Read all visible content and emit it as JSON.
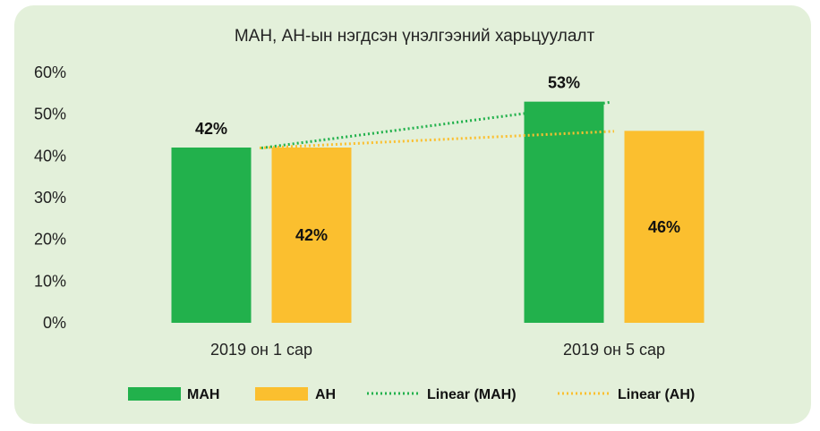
{
  "chart_data": {
    "type": "bar",
    "title": "МАН, АН-ын нэгдсэн үнэлгээний харьцуулалт",
    "categories": [
      "2019 он 1 сар",
      "2019 он 5 сар"
    ],
    "series": [
      {
        "name": "МАН",
        "values": [
          42,
          53
        ],
        "labels": [
          "42%",
          "53%"
        ],
        "color": "#22b14c"
      },
      {
        "name": "АН",
        "values": [
          42,
          46
        ],
        "labels": [
          "42%",
          "46%"
        ],
        "color": "#fbbf2f"
      }
    ],
    "trendlines": [
      {
        "name": "Linear (МАН)",
        "color": "#22b14c"
      },
      {
        "name": "Linear (АН)",
        "color": "#fbbf2f"
      }
    ],
    "yticks": [
      "0%",
      "10%",
      "20%",
      "30%",
      "40%",
      "50%",
      "60%"
    ],
    "ylim": [
      0,
      60
    ],
    "legend_position": "bottom",
    "grid": false
  }
}
